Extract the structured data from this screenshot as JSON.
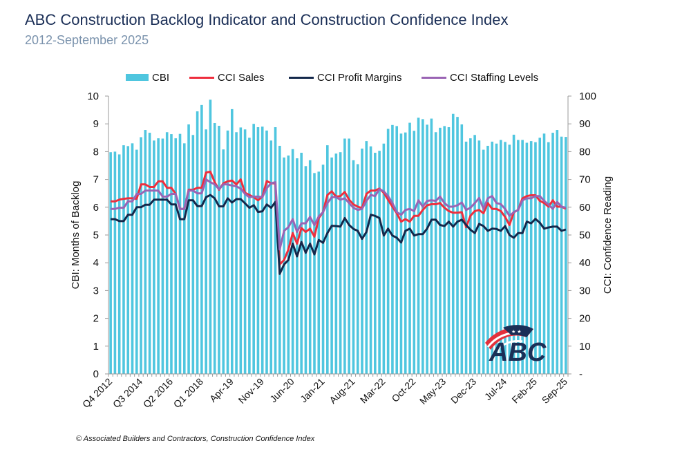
{
  "header": {
    "title": "ABC Construction Backlog Indicator and Construction Confidence Index",
    "subtitle": "2012-September 2025"
  },
  "footer": "© Associated Builders and Contractors, Construction Confidence Index",
  "logo": {
    "text": "ABC"
  },
  "chart_data": {
    "type": "bar+line",
    "title": "ABC Construction Backlog Indicator and Construction Confidence Index",
    "subtitle": "2012-September 2025",
    "ylabel_left": "CBI: Months of Backlog",
    "ylabel_right": "CCI: Confidence Reading",
    "ylim_left": [
      0,
      10
    ],
    "ylim_right": [
      0,
      100
    ],
    "left_ticks": [
      "0",
      "1",
      "2",
      "3",
      "4",
      "5",
      "6",
      "7",
      "8",
      "9",
      "10"
    ],
    "right_ticks": [
      "-",
      "10",
      "20",
      "30",
      "40",
      "50",
      "60",
      "70",
      "80",
      "90",
      "100"
    ],
    "legend_position": "top",
    "grid": false,
    "x_tick_labels": [
      "Q4 2012",
      "Q3 2014",
      "Q2 2016",
      "Q1 2018",
      "Apr-19",
      "Nov-19",
      "Jun-20",
      "Jan-21",
      "Aug-21",
      "Mar-22",
      "Oct-22",
      "May-23",
      "Dec-23",
      "Jul-24",
      "Feb-25",
      "Sep-25"
    ],
    "categories": [
      "Q4 2012",
      "Q1 2013",
      "Q2 2013",
      "Q3 2013",
      "Q4 2013",
      "Q1 2014",
      "Q2 2014",
      "Q3 2014",
      "Q4 2014",
      "Q1 2015",
      "Q2 2015",
      "Q3 2015",
      "Q4 2015",
      "Q1 2016",
      "Q2 2016",
      "Q3 2016",
      "Q4 2016",
      "Q1 2017",
      "Q2 2017",
      "Q3 2017",
      "Q4 2017",
      "Q1 2018",
      "Q2 2018",
      "Q3 2018",
      "Q4 2018",
      "Jan-19",
      "Feb-19",
      "Mar-19",
      "Apr-19",
      "May-19",
      "Jun-19",
      "Jul-19",
      "Aug-19",
      "Sep-19",
      "Oct-19",
      "Nov-19",
      "Dec-19",
      "Jan-20",
      "Feb-20",
      "Mar-20",
      "Apr-20",
      "May-20",
      "Jun-20",
      "Jul-20",
      "Aug-20",
      "Sep-20",
      "Oct-20",
      "Nov-20",
      "Dec-20",
      "Jan-21",
      "Feb-21",
      "Mar-21",
      "Apr-21",
      "May-21",
      "Jun-21",
      "Jul-21",
      "Aug-21",
      "Sep-21",
      "Oct-21",
      "Nov-21",
      "Dec-21",
      "Jan-22",
      "Feb-22",
      "Mar-22",
      "Apr-22",
      "May-22",
      "Jun-22",
      "Jul-22",
      "Aug-22",
      "Sep-22",
      "Oct-22",
      "Nov-22",
      "Dec-22",
      "Jan-23",
      "Feb-23",
      "Mar-23",
      "Apr-23",
      "May-23",
      "Jun-23",
      "Jul-23",
      "Aug-23",
      "Sep-23",
      "Oct-23",
      "Nov-23",
      "Dec-23",
      "Jan-24",
      "Feb-24",
      "Mar-24",
      "Apr-24",
      "May-24",
      "Jun-24",
      "Jul-24",
      "Aug-24",
      "Sep-24",
      "Oct-24",
      "Nov-24",
      "Dec-24",
      "Jan-25",
      "Feb-25",
      "Mar-25",
      "Apr-25",
      "May-25",
      "Jun-25",
      "Jul-25",
      "Aug-25",
      "Sep-25"
    ],
    "series": [
      {
        "name": "CBI",
        "type": "bar",
        "axis": "left",
        "color": "#4fc6df",
        "values": [
          7.98,
          8.0,
          7.9,
          8.23,
          8.2,
          8.3,
          8.07,
          8.52,
          8.78,
          8.68,
          8.4,
          8.48,
          8.47,
          8.7,
          8.63,
          8.48,
          8.64,
          8.3,
          8.98,
          8.6,
          9.45,
          9.68,
          8.8,
          9.87,
          9.03,
          8.93,
          8.08,
          8.76,
          9.53,
          8.7,
          8.87,
          8.8,
          8.5,
          9.0,
          8.88,
          8.9,
          8.76,
          8.4,
          8.88,
          8.21,
          7.79,
          7.86,
          8.09,
          7.76,
          7.96,
          7.48,
          7.69,
          7.23,
          7.28,
          7.53,
          8.23,
          7.79,
          7.93,
          7.98,
          8.47,
          8.47,
          7.69,
          7.55,
          8.11,
          8.38,
          8.19,
          7.96,
          8.03,
          8.29,
          8.82,
          8.96,
          8.92,
          8.65,
          8.69,
          9.04,
          8.75,
          9.22,
          9.17,
          8.97,
          9.19,
          8.7,
          8.86,
          8.92,
          8.88,
          9.36,
          9.25,
          8.98,
          8.36,
          8.48,
          8.6,
          8.4,
          8.07,
          8.21,
          8.36,
          8.29,
          8.42,
          8.35,
          8.25,
          8.61,
          8.42,
          8.42,
          8.32,
          8.38,
          8.34,
          8.5,
          8.65,
          8.34,
          8.68,
          8.78,
          8.54,
          8.53
        ]
      },
      {
        "name": "CCI Sales",
        "type": "line",
        "axis": "right",
        "color": "#ee2e3d",
        "values": [
          62.1,
          62.1,
          62.7,
          63,
          63.2,
          63.2,
          63,
          68.2,
          68.2,
          67.3,
          67.3,
          69.3,
          69.3,
          67,
          67,
          64.8,
          59.4,
          59.4,
          66.3,
          66.3,
          67,
          67,
          72.5,
          72.8,
          69,
          66.3,
          68.6,
          69.3,
          69.6,
          68.2,
          70,
          65.2,
          64.4,
          63.6,
          62.5,
          63.8,
          69.4,
          68.6,
          68.6,
          39.4,
          41,
          44.8,
          50.7,
          46.9,
          52.5,
          51.1,
          52.3,
          49.4,
          56.1,
          58.2,
          64.4,
          65.7,
          63.8,
          64,
          65.5,
          62.7,
          61,
          60.2,
          59.7,
          64.8,
          66,
          66,
          66.7,
          65.2,
          62.7,
          60.2,
          57.8,
          54.8,
          55.7,
          54.8,
          56.9,
          56.9,
          59,
          60.7,
          61.1,
          61.1,
          61.5,
          59.8,
          58.6,
          58,
          58,
          58.2,
          52.8,
          56.9,
          58.6,
          59,
          57.8,
          61.5,
          59.4,
          59.4,
          58.6,
          56.5,
          53.6,
          58.2,
          59,
          63.2,
          64,
          64.3,
          64.3,
          62.3,
          61.5,
          60.2,
          62.5,
          60.2,
          60.2,
          59.4
        ]
      },
      {
        "name": "CCI Profit Margins",
        "type": "line",
        "axis": "right",
        "color": "#14284b",
        "values": [
          55.7,
          55.7,
          55,
          55,
          57.3,
          57.3,
          60,
          60,
          60.9,
          60.9,
          62.7,
          62.7,
          62.7,
          62.7,
          61,
          61,
          55.7,
          55.7,
          62.5,
          62.5,
          60.4,
          60.4,
          63.6,
          64.4,
          63.2,
          60.3,
          60.3,
          63.2,
          61.7,
          62.9,
          62.9,
          61.4,
          59.8,
          60.7,
          58.3,
          58.5,
          61,
          59.8,
          61.9,
          36,
          39.4,
          41,
          46.9,
          42.3,
          47.5,
          43.6,
          46.9,
          43,
          48.2,
          47.2,
          50.7,
          53.3,
          53.2,
          53,
          56.1,
          53.6,
          52.2,
          51.5,
          48.6,
          51.1,
          57.3,
          56.9,
          56.1,
          49.8,
          52.3,
          49.8,
          49,
          47.3,
          51.5,
          52.3,
          49.8,
          50.3,
          50.3,
          52.3,
          55.5,
          55.5,
          53.6,
          53.2,
          54.8,
          53,
          54.8,
          55.5,
          53.6,
          51.9,
          50.7,
          54,
          53.2,
          51.5,
          52.3,
          52.2,
          51.5,
          53.2,
          50,
          49,
          50.7,
          50.7,
          54.8,
          54.2,
          55.8,
          54.4,
          52.3,
          52.7,
          53,
          53,
          51.5,
          52
        ]
      },
      {
        "name": "CCI Staffing Levels",
        "type": "line",
        "axis": "right",
        "color": "#9a64b4",
        "values": [
          59.4,
          59.4,
          59.8,
          59.8,
          62.1,
          62.1,
          64.8,
          64.8,
          66,
          66,
          66,
          66,
          63.8,
          63.8,
          64.8,
          64.8,
          59.4,
          59.4,
          66,
          66,
          65,
          65,
          70,
          69,
          68.2,
          66.5,
          68.2,
          68.2,
          67.8,
          67.5,
          66.7,
          64.8,
          63.6,
          63.8,
          63.8,
          63.6,
          66.9,
          68.6,
          69,
          44.8,
          51.5,
          52.8,
          55.7,
          51.1,
          54.2,
          54.2,
          56.5,
          53.6,
          56.7,
          58.2,
          61.5,
          63.6,
          63.6,
          62.7,
          63.2,
          61.5,
          59.8,
          59,
          59.4,
          62.3,
          64.4,
          64,
          66.5,
          65.7,
          64,
          61.5,
          58.2,
          57.3,
          59,
          59.4,
          58.6,
          62.5,
          60.2,
          62.3,
          62.5,
          62.3,
          63.8,
          61.5,
          60.2,
          60.2,
          60.7,
          61.7,
          59,
          59.8,
          61.5,
          63.3,
          59.4,
          63.2,
          64,
          61.5,
          61.1,
          59.4,
          56.9,
          58.2,
          59,
          62.5,
          63.2,
          63.2,
          64,
          64,
          62.3,
          60.9,
          59.4,
          61.9,
          60.2,
          59.8
        ]
      }
    ]
  }
}
